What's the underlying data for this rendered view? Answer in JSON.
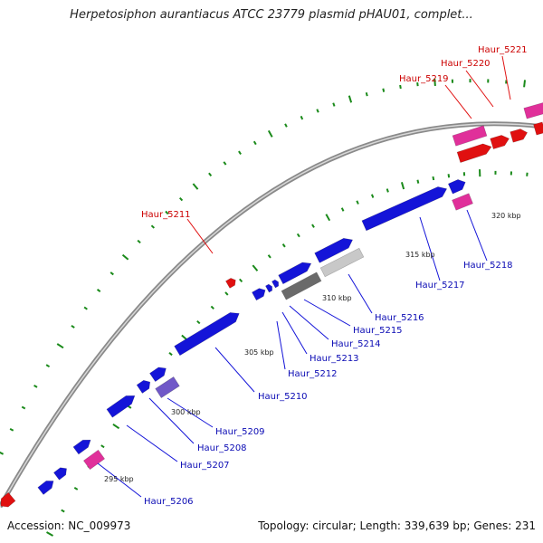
{
  "title": "Herpetosiphon aurantiacus ATCC 23779 plasmid pHAU01, complet...",
  "footer": {
    "accession": "Accession: NC_009973",
    "stats": "Topology: circular; Length: 339,639 bp; Genes: 231"
  },
  "colors": {
    "forward_gene": "#1414d8",
    "reverse_gene": "#e01010",
    "pink_feature": "#e0309a",
    "purple_feature": "#7058c8",
    "grey_feature": "#6a6a6a",
    "light_feature": "#c8c8c8",
    "backbone": "#8a8a8a",
    "tick": "#1a8a1a",
    "label_blue": "#0a0ab4",
    "label_red": "#cc0000"
  },
  "scale_labels": [
    "295 kbp",
    "300 kbp",
    "305 kbp",
    "310 kbp",
    "315 kbp",
    "320 kbp"
  ],
  "gene_labels": [
    {
      "text": "Haur_5206",
      "strand": "forward"
    },
    {
      "text": "Haur_5207",
      "strand": "forward"
    },
    {
      "text": "Haur_5208",
      "strand": "forward"
    },
    {
      "text": "Haur_5209",
      "strand": "forward"
    },
    {
      "text": "Haur_5210",
      "strand": "forward"
    },
    {
      "text": "Haur_5211",
      "strand": "reverse"
    },
    {
      "text": "Haur_5212",
      "strand": "forward"
    },
    {
      "text": "Haur_5213",
      "strand": "forward"
    },
    {
      "text": "Haur_5214",
      "strand": "forward"
    },
    {
      "text": "Haur_5215",
      "strand": "forward"
    },
    {
      "text": "Haur_5216",
      "strand": "forward"
    },
    {
      "text": "Haur_5217",
      "strand": "forward"
    },
    {
      "text": "Haur_5218",
      "strand": "forward"
    },
    {
      "text": "Haur_5219",
      "strand": "reverse"
    },
    {
      "text": "Haur_5220",
      "strand": "reverse"
    },
    {
      "text": "Haur_5221",
      "strand": "reverse"
    }
  ]
}
